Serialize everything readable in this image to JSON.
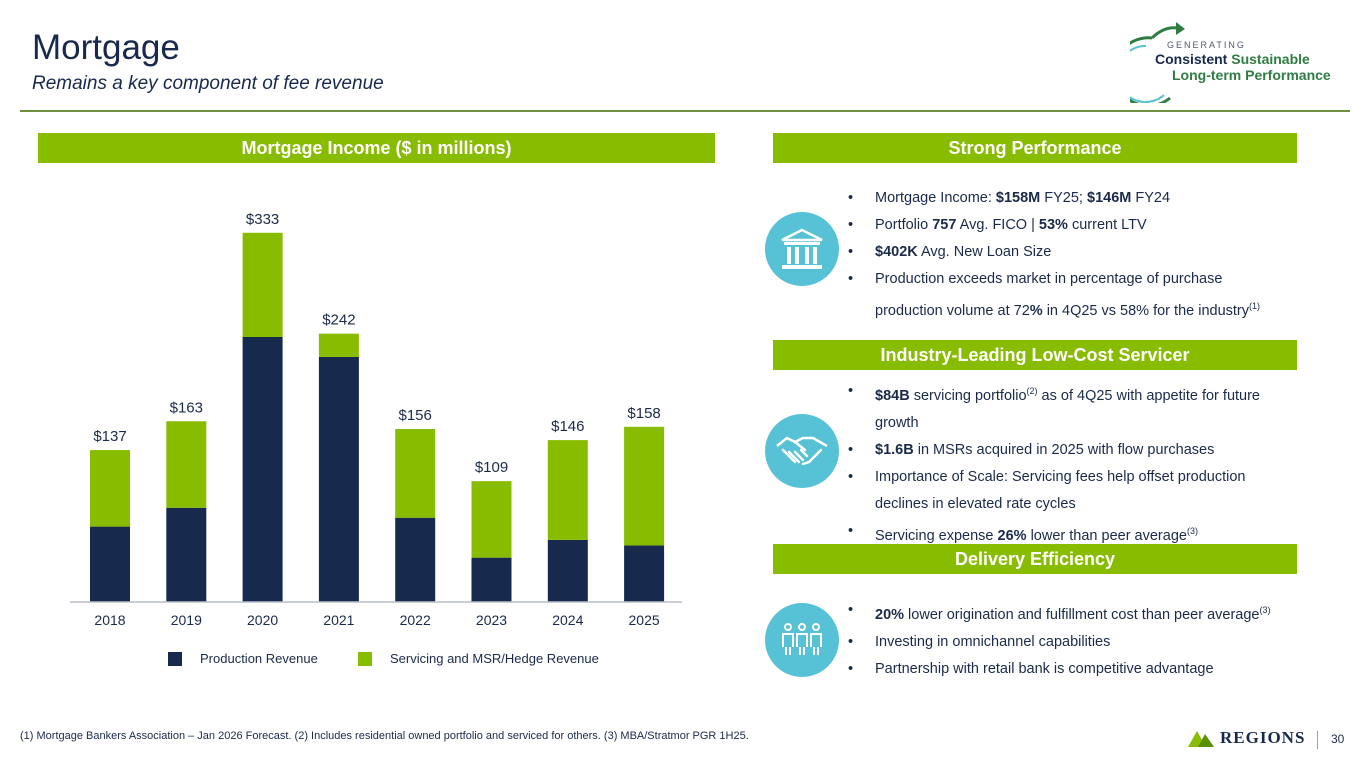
{
  "header": {
    "title": "Mortgage",
    "subtitle": "Remains a key component of fee revenue",
    "logo": {
      "line0": "GENERATING",
      "word1": "Consistent",
      "word2": "Sustainable",
      "line2": "Long-term Performance"
    }
  },
  "colors": {
    "navy": "#17294d",
    "green": "#88bc00",
    "teal": "#57c2d6"
  },
  "chart_band": "Mortgage Income ($ in millions)",
  "chart_data": {
    "type": "bar",
    "stacked": true,
    "title": "Mortgage Income ($ in millions)",
    "categories": [
      "2018",
      "2019",
      "2020",
      "2021",
      "2022",
      "2023",
      "2024",
      "2025"
    ],
    "series": [
      {
        "name": "Production Revenue",
        "values": [
          68,
          85,
          239,
          221,
          76,
          40,
          56,
          51
        ]
      },
      {
        "name": "Servicing and MSR/Hedge Revenue",
        "values": [
          69,
          78,
          94,
          21,
          80,
          69,
          90,
          107
        ]
      }
    ],
    "total_labels": [
      "$137",
      "$163",
      "$333",
      "$242",
      "$156",
      "$109",
      "$146",
      "$158"
    ],
    "ylim": [
      0,
      340
    ],
    "xlabel": "",
    "ylabel": "",
    "legend": "bottom"
  },
  "sections": {
    "performance": {
      "title": "Strong Performance",
      "icon": "bank-icon",
      "bullets": [
        {
          "pre": "Mortgage Income: ",
          "b1": "$158M",
          "mid1": " FY25; ",
          "b2": "$146M",
          "post": " FY24"
        },
        {
          "pre": "Portfolio ",
          "b1": "757",
          "mid1": " Avg. FICO |  ",
          "b2": "53%",
          "post": " current LTV"
        },
        {
          "b1": "$402K",
          "post": " Avg. New Loan Size"
        },
        {
          "pre": "Production exceeds market in percentage of purchase"
        }
      ],
      "cont": {
        "pre": "production volume at 72",
        "b1": "%",
        "post": " in 4Q25 vs 58% for the industry",
        "sup": "(1)"
      }
    },
    "servicer": {
      "title": "Industry-Leading Low-Cost Servicer",
      "icon": "handshake-icon",
      "b1": {
        "bold": "$84B",
        "text": " servicing portfolio",
        "sup": "(2)",
        "post": " as of 4Q25 with appetite for future",
        "cont": "growth"
      },
      "b2": {
        "bold": "$1.6B",
        "text": " in MSRs acquired in 2025 with flow purchases"
      },
      "b3": {
        "text": "Importance of Scale: Servicing fees help offset production",
        "cont": "declines in elevated rate cycles"
      },
      "b4": {
        "pre": "Servicing expense ",
        "bold": "26%",
        "text": " lower than peer average",
        "sup": "(3)"
      }
    },
    "delivery": {
      "title": "Delivery Efficiency",
      "icon": "people-icon",
      "b1": {
        "bold": "20%",
        "text": " lower origination and fulfillment cost than peer average",
        "sup": "(3)"
      },
      "b2": {
        "text": "Investing in omnichannel capabilities"
      },
      "b3": {
        "text": "Partnership with retail bank is competitive advantage"
      }
    }
  },
  "footer": {
    "footnote": "(1) Mortgage Bankers Association – Jan 2026 Forecast. (2) Includes residential owned portfolio and serviced for others. (3) MBA/Stratmor PGR 1H25.",
    "brand": "REGIONS",
    "page": "30"
  }
}
